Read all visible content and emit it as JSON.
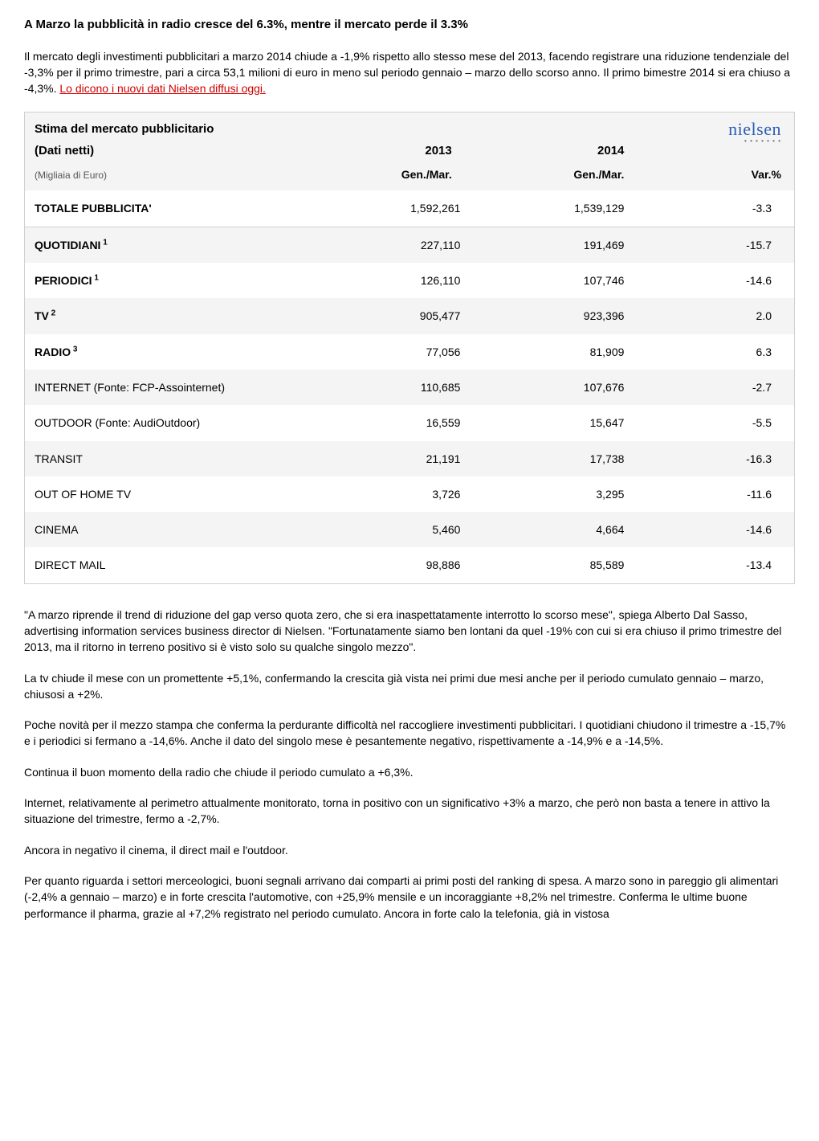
{
  "title": "A Marzo la pubblicità in radio cresce del 6.3%, mentre il mercato perde il 3.3%",
  "intro": {
    "black": "Il mercato degli investimenti pubblicitari a marzo 2014 chiude a -1,9% rispetto allo stesso mese del 2013, facendo registrare una riduzione tendenziale del -3,3% per il primo trimestre, pari a circa 53,1 milioni di euro in meno sul periodo gennaio – marzo dello scorso anno. Il primo bimestre 2014 si era chiuso a -4,3%. ",
    "redlink": "Lo dicono i nuovi dati Nielsen diffusi oggi."
  },
  "table": {
    "header_title_line1": "Stima del mercato pubblicitario",
    "header_title_line2": "(Dati netti)",
    "col_2013": "2013",
    "col_2014": "2014",
    "logo_text": "nielsen",
    "logo_dots": "• • • • • • •",
    "subcaption": "(Migliaia di Euro)",
    "subcol_period1": "Gen./Mar.",
    "subcol_period2": "Gen./Mar.",
    "subcol_var": "Var.%",
    "rows": [
      {
        "label": "TOTALE PUBBLICITA'",
        "sup": "",
        "v1": "1,592,261",
        "v2": "1,539,129",
        "var": "-3.3",
        "bold": true,
        "alt": false,
        "total": true
      },
      {
        "label": "QUOTIDIANI",
        "sup": "1",
        "v1": "227,110",
        "v2": "191,469",
        "var": "-15.7",
        "bold": true,
        "alt": true
      },
      {
        "label": "PERIODICI",
        "sup": "1",
        "v1": "126,110",
        "v2": "107,746",
        "var": "-14.6",
        "bold": true,
        "alt": false
      },
      {
        "label": "TV",
        "sup": "2",
        "v1": "905,477",
        "v2": "923,396",
        "var": "2.0",
        "bold": true,
        "alt": true
      },
      {
        "label": "RADIO",
        "sup": "3",
        "v1": "77,056",
        "v2": "81,909",
        "var": "6.3",
        "bold": true,
        "alt": false
      },
      {
        "label": "INTERNET  (Fonte: FCP-Assointernet)",
        "sup": "",
        "v1": "110,685",
        "v2": "107,676",
        "var": "-2.7",
        "bold": false,
        "alt": true
      },
      {
        "label": "OUTDOOR (Fonte: AudiOutdoor)",
        "sup": "",
        "v1": "16,559",
        "v2": "15,647",
        "var": "-5.5",
        "bold": false,
        "alt": false
      },
      {
        "label": "TRANSIT",
        "sup": "",
        "v1": "21,191",
        "v2": "17,738",
        "var": "-16.3",
        "bold": false,
        "alt": true
      },
      {
        "label": "OUT OF HOME TV",
        "sup": "",
        "v1": "3,726",
        "v2": "3,295",
        "var": "-11.6",
        "bold": false,
        "alt": false
      },
      {
        "label": "CINEMA",
        "sup": "",
        "v1": "5,460",
        "v2": "4,664",
        "var": "-14.6",
        "bold": false,
        "alt": true
      },
      {
        "label": "DIRECT MAIL",
        "sup": "",
        "v1": "98,886",
        "v2": "85,589",
        "var": "-13.4",
        "bold": false,
        "alt": false
      }
    ]
  },
  "paras": [
    "\"A marzo riprende il trend di riduzione del gap verso quota zero, che si era inaspettatamente interrotto lo scorso mese\", spiega Alberto Dal Sasso, advertising information services business director di Nielsen. \"Fortunatamente siamo ben lontani da quel -19% con cui si era chiuso il primo trimestre del 2013, ma il ritorno in terreno positivo si è visto solo su qualche singolo mezzo\".",
    "La tv chiude il mese con un promettente +5,1%, confermando la crescita già vista nei primi due mesi anche per il periodo cumulato gennaio – marzo, chiusosi a +2%.",
    "Poche novità per il mezzo stampa che conferma la perdurante difficoltà nel raccogliere investimenti pubblicitari. I quotidiani chiudono il trimestre a -15,7% e i periodici si fermano a -14,6%. Anche il dato del singolo mese è pesantemente negativo, rispettivamente a -14,9% e a -14,5%.",
    "Continua il buon momento della radio che chiude il periodo cumulato a +6,3%.",
    "Internet, relativamente al perimetro attualmente monitorato, torna in positivo con un significativo +3% a marzo, che però non basta a tenere in attivo la situazione del trimestre, fermo a -2,7%.",
    "Ancora in negativo il cinema, il direct mail e l'outdoor.",
    "Per quanto riguarda i settori merceologici, buoni segnali arrivano dai comparti ai primi posti del ranking di spesa. A marzo sono in pareggio gli alimentari (-2,4% a gennaio – marzo) e in forte crescita l'automotive, con +25,9% mensile e un incoraggiante +8,2% nel trimestre. Conferma le ultime buone performance il pharma, grazie al +7,2% registrato nel periodo cumulato. Ancora in forte calo la telefonia, già in vistosa"
  ]
}
